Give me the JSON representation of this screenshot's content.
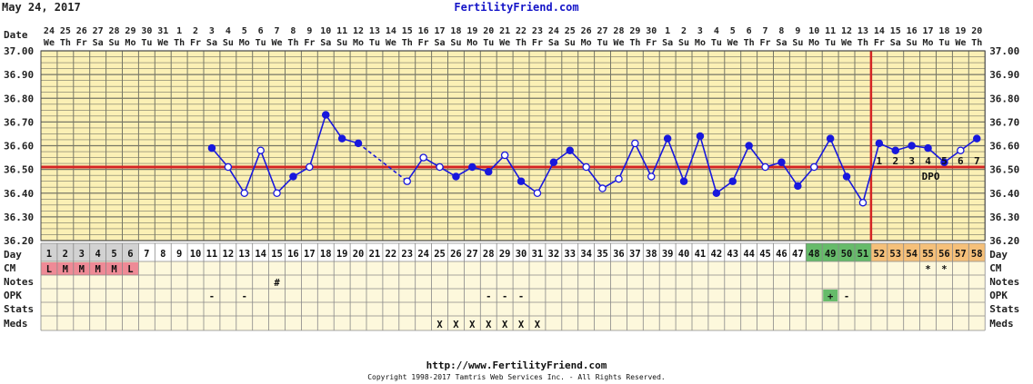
{
  "header": {
    "date": "May 24, 2017",
    "site": "FertilityFriend.com"
  },
  "footer": {
    "url": "http://www.FertilityFriend.com",
    "copyright": "Copyright 1998-2017 Tamtris Web Services Inc. - All Rights Reserved."
  },
  "chart_data": {
    "type": "line",
    "title": "",
    "row_labels": {
      "date": "Date",
      "day": "Day",
      "cm": "CM",
      "notes": "Notes",
      "opk": "OPK",
      "stats": "Stats",
      "meds": "Meds"
    },
    "y_ticks": [
      "37.00",
      "36.90",
      "36.80",
      "36.70",
      "36.60",
      "36.50",
      "36.40",
      "36.30",
      "36.20"
    ],
    "ylim": [
      36.2,
      37.0
    ],
    "dates": [
      "24",
      "25",
      "26",
      "27",
      "28",
      "29",
      "30",
      "31",
      "1",
      "2",
      "3",
      "4",
      "5",
      "6",
      "7",
      "8",
      "9",
      "10",
      "11",
      "12",
      "13",
      "14",
      "15",
      "16",
      "17",
      "18",
      "19",
      "20",
      "21",
      "22",
      "23",
      "24",
      "25",
      "26",
      "27",
      "28",
      "29",
      "30",
      "1",
      "2",
      "3",
      "4",
      "5",
      "6",
      "7",
      "8",
      "9",
      "10",
      "11",
      "12",
      "13",
      "14",
      "15",
      "16",
      "17",
      "18",
      "19",
      "20"
    ],
    "weekdays": [
      "We",
      "Th",
      "Fr",
      "Sa",
      "Su",
      "Mo",
      "Tu",
      "We",
      "Th",
      "Fr",
      "Sa",
      "Su",
      "Mo",
      "Tu",
      "We",
      "Th",
      "Fr",
      "Sa",
      "Su",
      "Mo",
      "Tu",
      "We",
      "Th",
      "Fr",
      "Sa",
      "Su",
      "Mo",
      "Tu",
      "We",
      "Th",
      "Fr",
      "Sa",
      "Su",
      "Mo",
      "Tu",
      "We",
      "Th",
      "Fr",
      "Sa",
      "Su",
      "Mo",
      "Tu",
      "We",
      "Th",
      "Fr",
      "Sa",
      "Su",
      "Mo",
      "Tu",
      "We",
      "Th",
      "Fr",
      "Sa",
      "Su",
      "Mo",
      "Tu",
      "We",
      "Th"
    ],
    "cycle_days": [
      "1",
      "2",
      "3",
      "4",
      "5",
      "6",
      "7",
      "8",
      "9",
      "10",
      "11",
      "12",
      "13",
      "14",
      "15",
      "16",
      "17",
      "18",
      "19",
      "20",
      "21",
      "22",
      "23",
      "24",
      "25",
      "26",
      "27",
      "28",
      "29",
      "30",
      "31",
      "32",
      "33",
      "34",
      "35",
      "36",
      "37",
      "38",
      "39",
      "40",
      "41",
      "42",
      "43",
      "44",
      "45",
      "46",
      "47",
      "48",
      "49",
      "50",
      "51",
      "52",
      "53",
      "54",
      "55",
      "56",
      "57",
      "58"
    ],
    "temps": [
      null,
      null,
      null,
      null,
      null,
      null,
      null,
      null,
      null,
      null,
      36.59,
      36.51,
      36.4,
      36.58,
      36.4,
      36.47,
      36.51,
      36.73,
      36.63,
      36.61,
      null,
      null,
      36.45,
      36.55,
      36.51,
      36.47,
      36.51,
      36.49,
      36.56,
      36.45,
      36.4,
      36.53,
      36.58,
      36.51,
      36.42,
      36.46,
      36.61,
      36.47,
      36.63,
      36.45,
      36.64,
      36.4,
      36.45,
      36.6,
      36.51,
      36.53,
      36.43,
      36.51,
      36.63,
      36.47,
      36.36,
      36.61,
      36.58,
      36.6,
      36.59,
      36.53,
      36.58,
      36.63
    ],
    "filled": [
      0,
      0,
      0,
      0,
      0,
      0,
      0,
      0,
      0,
      0,
      1,
      0,
      0,
      0,
      0,
      1,
      0,
      1,
      1,
      1,
      0,
      0,
      0,
      0,
      0,
      1,
      1,
      1,
      0,
      1,
      0,
      1,
      1,
      0,
      0,
      0,
      0,
      0,
      1,
      1,
      1,
      1,
      1,
      1,
      0,
      1,
      1,
      0,
      1,
      1,
      0,
      1,
      1,
      1,
      1,
      1,
      0,
      1
    ],
    "coverline": 36.51,
    "ovulation_day_index": 50,
    "dpo_labels": [
      "1",
      "2",
      "3",
      "4",
      "5",
      "6",
      "7"
    ],
    "dpo_text": "DPO",
    "day_colors": {
      "period": "#d2d2d2",
      "fertile": "#66bb6a",
      "luteal": "#f5c07a"
    },
    "day_type": [
      "p",
      "p",
      "p",
      "p",
      "p",
      "p",
      "n",
      "n",
      "n",
      "n",
      "n",
      "n",
      "n",
      "n",
      "n",
      "n",
      "n",
      "n",
      "n",
      "n",
      "n",
      "n",
      "n",
      "n",
      "n",
      "n",
      "n",
      "n",
      "n",
      "n",
      "n",
      "n",
      "n",
      "n",
      "n",
      "n",
      "n",
      "n",
      "n",
      "n",
      "n",
      "n",
      "n",
      "n",
      "n",
      "n",
      "n",
      "f",
      "f",
      "f",
      "f",
      "l",
      "l",
      "l",
      "l",
      "l",
      "l",
      "l"
    ],
    "cm": [
      {
        "i": 0,
        "v": "L"
      },
      {
        "i": 1,
        "v": "M"
      },
      {
        "i": 2,
        "v": "M"
      },
      {
        "i": 3,
        "v": "M"
      },
      {
        "i": 4,
        "v": "M"
      },
      {
        "i": 5,
        "v": "L"
      },
      {
        "i": 54,
        "v": "*"
      },
      {
        "i": 55,
        "v": "*"
      }
    ],
    "notes": [
      {
        "i": 14,
        "v": "#"
      }
    ],
    "opk": [
      {
        "i": 10,
        "v": "-"
      },
      {
        "i": 12,
        "v": "-"
      },
      {
        "i": 27,
        "v": "-"
      },
      {
        "i": 28,
        "v": "-"
      },
      {
        "i": 29,
        "v": "-"
      },
      {
        "i": 48,
        "v": "+",
        "pos": true
      },
      {
        "i": 49,
        "v": "-"
      }
    ],
    "meds": [
      {
        "i": 24,
        "v": "X"
      },
      {
        "i": 25,
        "v": "X"
      },
      {
        "i": 26,
        "v": "X"
      },
      {
        "i": 27,
        "v": "X"
      },
      {
        "i": 28,
        "v": "X"
      },
      {
        "i": 29,
        "v": "X"
      },
      {
        "i": 30,
        "v": "X"
      }
    ],
    "colors": {
      "plot_bg": "#fbf0b5",
      "grid": "#777766",
      "line": "#1818dd",
      "coverline": "#d42424",
      "cm_bg": "#ee8a96",
      "opk_pos": "#66bb6a",
      "row_bg": "#fdf8dc"
    }
  }
}
